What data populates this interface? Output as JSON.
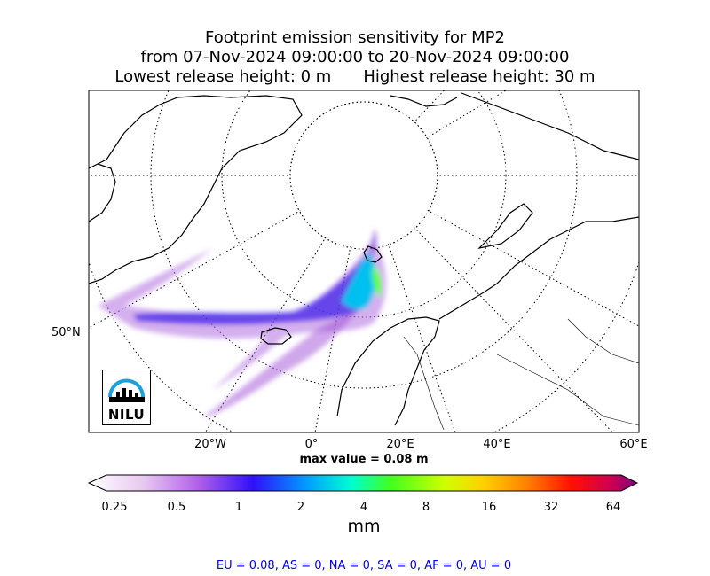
{
  "title": {
    "line1": "Footprint emission sensitivity for MP2",
    "line2": "from 07-Nov-2024 09:00:00 to 20-Nov-2024 09:00:00",
    "line3_left": "Lowest release height: 0 m",
    "line3_right": "Highest release height: 30 m"
  },
  "map": {
    "projection": "polar-stereographic",
    "longitude_labels": [
      "20°W",
      "0°",
      "20°E",
      "40°E",
      "60°E"
    ],
    "latitude_labels": [
      "50°N"
    ],
    "gridlines": "dotted",
    "logo_text": "NILU"
  },
  "max_value": "max value = 0.08 m",
  "colorbar": {
    "ticks": [
      "0.25",
      "0.5",
      "1",
      "2",
      "4",
      "8",
      "16",
      "32",
      "64"
    ],
    "units": "mm",
    "colors": [
      "#ffffff",
      "#d9a6ea",
      "#a020f0",
      "#0000ff",
      "#00ffff",
      "#7cfc00",
      "#ffff00",
      "#ffa500",
      "#ff0000",
      "#8b008b"
    ]
  },
  "regions": "EU = 0.08,  AS = 0,  NA = 0,  SA = 0,  AF = 0,  AU = 0"
}
